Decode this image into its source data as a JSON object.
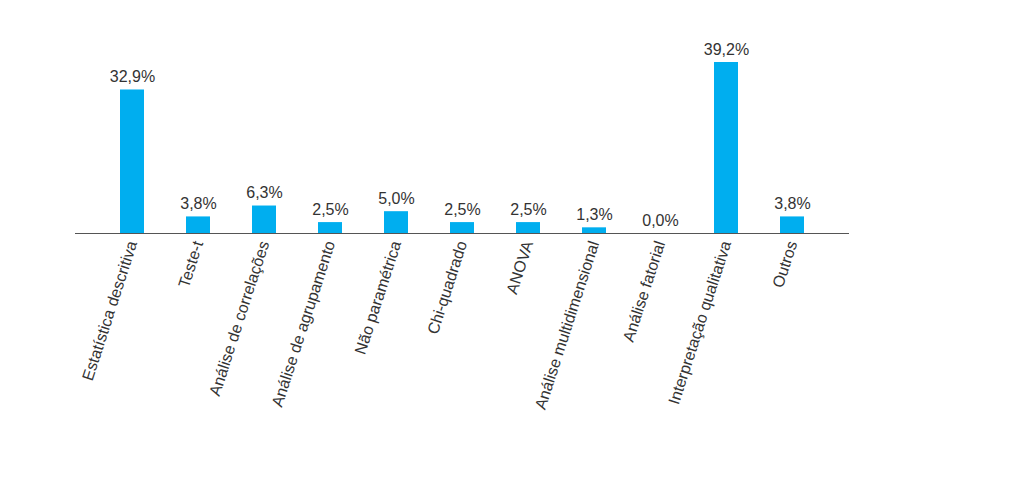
{
  "chart_data": {
    "type": "bar",
    "categories": [
      "Estatística descritiva",
      "Teste-t",
      "Análise de correlações",
      "Análise de agrupamento",
      "Não paramétrica",
      "Chi-quadrado",
      "ANOVA",
      "Análise multidimensional",
      "Análise fatorial",
      "Interpretação qualitativa",
      "Outros"
    ],
    "values": [
      32.9,
      3.8,
      6.3,
      2.5,
      5.0,
      2.5,
      2.5,
      1.3,
      0.0,
      39.2,
      3.8
    ],
    "value_labels": [
      "32,9%",
      "3,8%",
      "6,3%",
      "2,5%",
      "5,0%",
      "2,5%",
      "2,5%",
      "1,3%",
      "0,0%",
      "39,2%",
      "3,8%"
    ],
    "color": "#00aeef",
    "data_labels": true,
    "tick_labels": "x",
    "grid": false
  }
}
